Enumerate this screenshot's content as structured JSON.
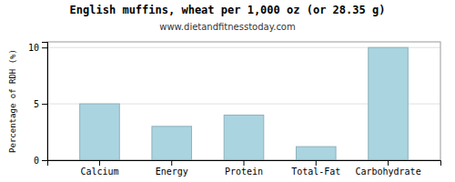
{
  "chart_data": {
    "type": "bar",
    "title": "English muffins, wheat per 1,000 oz (or 28.35 g)",
    "subtitle": "www.dietandfitnesstoday.com",
    "categories": [
      "Calcium",
      "Energy",
      "Protein",
      "Total-Fat",
      "Carbohydrate"
    ],
    "values": [
      5.0,
      3.0,
      4.0,
      1.2,
      10.0
    ],
    "color": "#aad4e0",
    "ylabel": "Percentage of RDH (%)",
    "ylim": [
      0,
      10.5
    ],
    "yticks": [
      0,
      5,
      10
    ],
    "grid": true
  }
}
